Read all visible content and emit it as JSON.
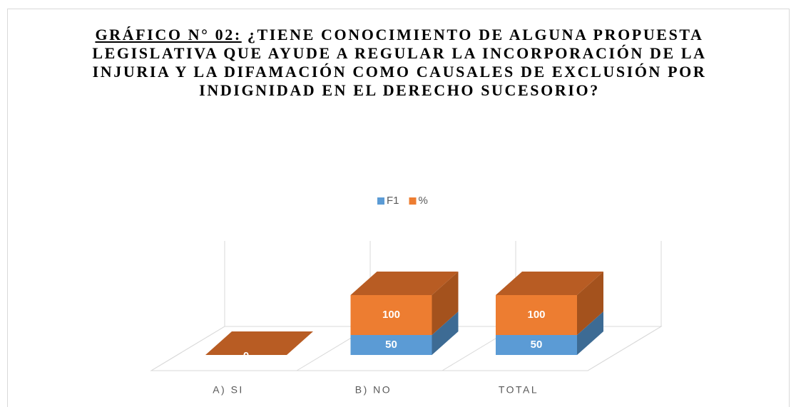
{
  "chart_data": {
    "type": "bar3d-stacked",
    "title_label": "GRÁFICO N° 02:",
    "title": "¿TIENE CONOCIMIENTO DE ALGUNA PROPUESTA LEGISLATIVA QUE AYUDE A REGULAR LA INCORPORACIÓN DE LA INJURIA Y LA DIFAMACIÓN COMO CAUSALES DE EXCLUSIÓN POR INDIGNIDAD EN EL DERECHO SUCESORIO?",
    "categories": [
      "A) SI",
      "B) NO",
      "TOTAL"
    ],
    "series": [
      {
        "name": "F1",
        "color": "#5b9bd5",
        "side": "#3d6b94",
        "values": [
          0,
          50,
          50
        ]
      },
      {
        "name": "%",
        "color": "#ed7d31",
        "side": "#a4521d",
        "top": "#b85c23",
        "values": [
          0,
          100,
          100
        ]
      }
    ],
    "legend": "top"
  }
}
